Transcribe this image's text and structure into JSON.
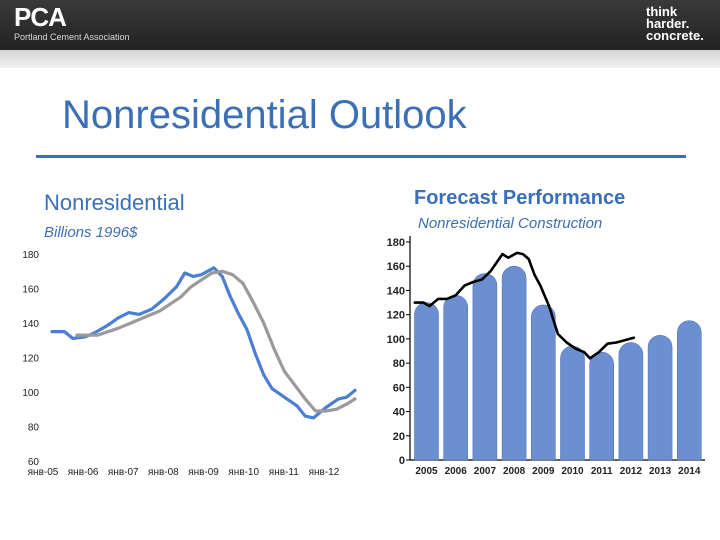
{
  "header": {
    "logo_text": "PCA",
    "logo_subtitle": "Portland Cement Association",
    "tagline": [
      "think",
      "harder.",
      "concrete."
    ]
  },
  "slide": {
    "title": "Nonresidential Outlook"
  },
  "left_panel": {
    "title": "Nonresidential",
    "unit": "Billions 1996$"
  },
  "right_panel": {
    "title": "Forecast Performance",
    "subtitle": "Nonresidential Construction"
  },
  "colors": {
    "accent": "#3b6fb7",
    "series_blue": "#4a7fd4",
    "series_gray": "#9a9a9a",
    "bar": "#6b8fd0",
    "line_black": "#000000"
  },
  "chart_data": [
    {
      "type": "line",
      "title": "Nonresidential",
      "subtitle": "Billions 1996$",
      "xlabel": "",
      "ylabel": "",
      "ylim": [
        60,
        180
      ],
      "yticks": [
        60,
        80,
        100,
        120,
        140,
        160,
        180
      ],
      "x_ticklabels": [
        "янв-05",
        "янв-06",
        "янв-07",
        "янв-08",
        "янв-09",
        "янв-10",
        "янв-11",
        "янв-12"
      ],
      "legend": "none",
      "grid": false,
      "series": [
        {
          "color": "#4a7fd4",
          "x": [
            2004.9,
            2005.2,
            2005.4,
            2005.7,
            2005.9,
            2006.2,
            2006.5,
            2006.75,
            2007.0,
            2007.3,
            2007.6,
            2007.9,
            2008.1,
            2008.3,
            2008.5,
            2008.8,
            2009.0,
            2009.2,
            2009.4,
            2009.6,
            2009.8,
            2010.0,
            2010.2,
            2010.5,
            2010.8,
            2011.0,
            2011.2,
            2011.5,
            2011.8,
            2012.0,
            2012.2
          ],
          "y": [
            135,
            135,
            131,
            132,
            134,
            138,
            143,
            146,
            145,
            148,
            154,
            161,
            169,
            167,
            168,
            172,
            167,
            155,
            145,
            136,
            122,
            110,
            102,
            97,
            92,
            86,
            85,
            91,
            96,
            97,
            101
          ]
        },
        {
          "color": "#9a9a9a",
          "x": [
            2005.5,
            2006.0,
            2006.5,
            2007.0,
            2007.5,
            2008.0,
            2008.25,
            2008.5,
            2008.75,
            2009.0,
            2009.25,
            2009.5,
            2009.75,
            2010.0,
            2010.25,
            2010.5,
            2010.75,
            2011.0,
            2011.25,
            2011.5,
            2011.75,
            2012.0,
            2012.2
          ],
          "y": [
            133,
            133,
            137,
            142,
            147,
            155,
            161,
            165,
            169,
            170,
            168,
            163,
            152,
            140,
            125,
            112,
            104,
            96,
            89,
            89,
            90,
            93,
            96
          ]
        }
      ]
    },
    {
      "type": "bar",
      "title": "Forecast Performance",
      "subtitle": "Nonresidential Construction",
      "xlabel": "",
      "ylabel": "",
      "ylim": [
        0,
        180
      ],
      "yticks": [
        0,
        20,
        40,
        60,
        80,
        100,
        120,
        140,
        160,
        180
      ],
      "categories": [
        "2005",
        "2006",
        "2007",
        "2008",
        "2009",
        "2010",
        "2011",
        "2012",
        "2013",
        "2014"
      ],
      "values": [
        130,
        136,
        154,
        160,
        128,
        94,
        89,
        97,
        103,
        115
      ],
      "legend": "none",
      "grid": false,
      "overlay_line": {
        "color": "#000000",
        "x": [
          2004.6,
          2004.9,
          2005.1,
          2005.4,
          2005.7,
          2006.0,
          2006.3,
          2006.6,
          2006.9,
          2007.2,
          2007.6,
          2007.8,
          2008.1,
          2008.3,
          2008.5,
          2008.7,
          2008.9,
          2009.2,
          2009.5,
          2009.8,
          2010.1,
          2010.4,
          2010.6,
          2010.9,
          2011.2,
          2011.5,
          2011.8,
          2012.1
        ],
        "y": [
          130,
          130,
          127,
          133,
          133,
          136,
          144,
          147,
          149,
          156,
          170,
          167,
          171,
          170,
          166,
          153,
          144,
          127,
          104,
          97,
          92,
          89,
          84,
          89,
          96,
          97,
          99,
          101
        ]
      }
    }
  ]
}
